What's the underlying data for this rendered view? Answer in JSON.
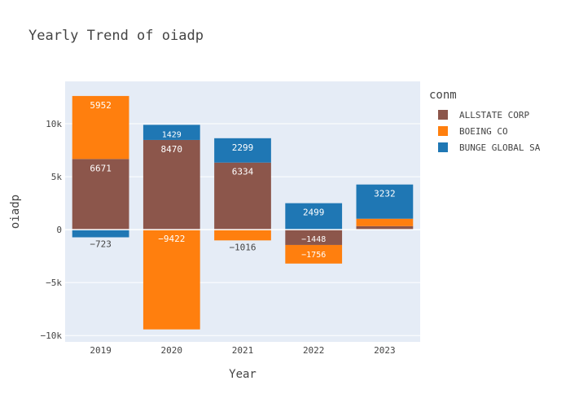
{
  "title": "Yearly Trend of oiadp",
  "chart_data": {
    "type": "bar",
    "barmode": "relative",
    "title": "Yearly Trend of oiadp",
    "xlabel": "Year",
    "ylabel": "oiadp",
    "categories": [
      "2019",
      "2020",
      "2021",
      "2022",
      "2023"
    ],
    "ylim": [
      -10600,
      14000
    ],
    "yticks": [
      -10000,
      -5000,
      0,
      5000,
      10000
    ],
    "ytick_labels": [
      "−10k",
      "−5k",
      "0",
      "5k",
      "10k"
    ],
    "legend_title": "conm",
    "legend_position": "right",
    "series": [
      {
        "name": "ALLSTATE CORP",
        "color": "#8c564b",
        "values": [
          6671,
          8470,
          6334,
          -1448,
          330
        ],
        "labels": [
          "6671",
          "8470",
          "6334",
          "−1448",
          ""
        ]
      },
      {
        "name": "BOEING CO",
        "color": "#ff7f0e",
        "values": [
          5952,
          -9422,
          -1016,
          -1756,
          700
        ],
        "labels": [
          "5952",
          "−9422",
          "−1016",
          "−1756",
          ""
        ]
      },
      {
        "name": "BUNGE GLOBAL SA",
        "color": "#1f77b4",
        "values": [
          -723,
          1429,
          2299,
          2499,
          3232
        ],
        "labels": [
          "−723",
          "1429",
          "2299",
          "2499",
          "3232"
        ]
      }
    ]
  }
}
